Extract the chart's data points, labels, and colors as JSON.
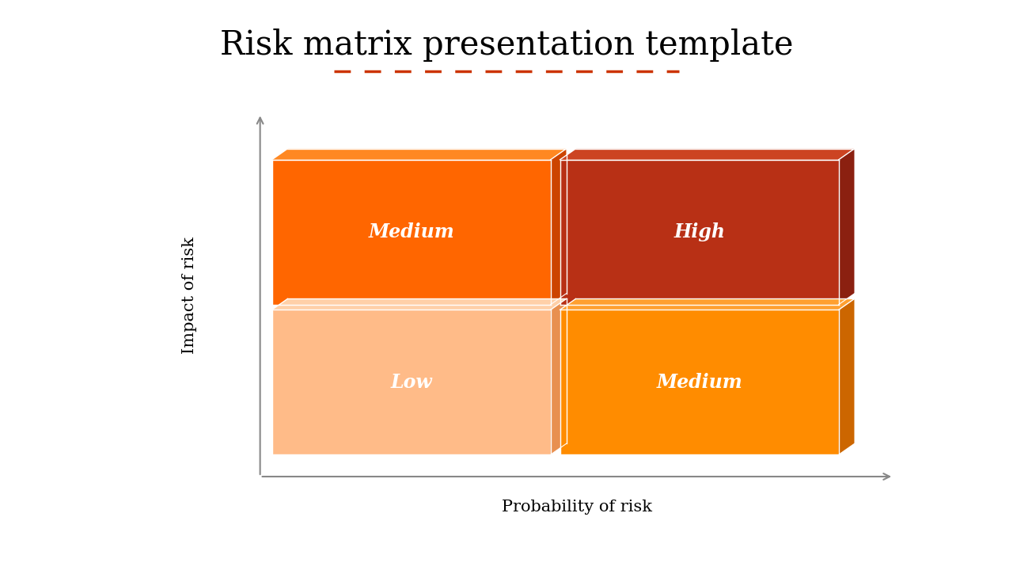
{
  "title": "Risk matrix presentation template",
  "title_fontsize": 30,
  "title_font": "serif",
  "xlabel": "Probability of risk",
  "ylabel": "Impact of risk",
  "axis_label_fontsize": 15,
  "dashed_line_color": "#CC3300",
  "background_color": "#ffffff",
  "blocks": [
    {
      "label": "Low",
      "col": 0,
      "row": 0,
      "face_color": "#FFBB88",
      "top_color": "#FFD0A8",
      "side_color": "#E89050"
    },
    {
      "label": "Medium",
      "col": 1,
      "row": 0,
      "face_color": "#FF8C00",
      "top_color": "#FFA030",
      "side_color": "#CC6600"
    },
    {
      "label": "Medium",
      "col": 0,
      "row": 1,
      "face_color": "#FF6600",
      "top_color": "#FF8822",
      "side_color": "#CC4400"
    },
    {
      "label": "High",
      "col": 1,
      "row": 1,
      "face_color": "#B83015",
      "top_color": "#CC4422",
      "side_color": "#8B2010"
    }
  ]
}
